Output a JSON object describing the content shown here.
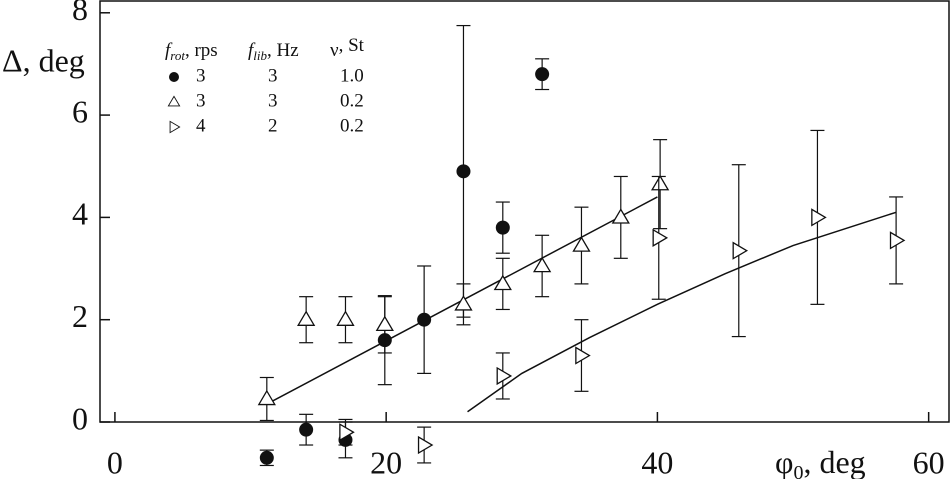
{
  "chart_data": {
    "type": "scatter",
    "x_label": {
      "symbol": "φ",
      "sub": "0",
      "rest": ", deg"
    },
    "y_label": "Δ, deg",
    "xlim": [
      -1.1,
      61.5
    ],
    "ylim": [
      0,
      8.25
    ],
    "xticks": [
      0,
      20,
      40,
      60
    ],
    "yticks": [
      0,
      2,
      4,
      6,
      8
    ],
    "legend_header": [
      {
        "symbol": "f",
        "sub": "rot",
        "rest": ", rps"
      },
      {
        "symbol": "f",
        "sub": "lib",
        "rest": ", Hz"
      },
      {
        "symbol": "ν",
        "sub": "",
        "rest": ", St"
      }
    ],
    "series": [
      {
        "marker": "circle",
        "color": "#111111",
        "legend": [
          "3",
          "3",
          "1.0"
        ],
        "x": [
          11.2,
          14.1,
          17,
          19.9,
          22.8,
          25.7,
          28.6,
          31.5
        ],
        "values": [
          -0.7,
          -0.15,
          -0.35,
          1.6,
          2.0,
          4.9,
          3.8,
          6.8
        ],
        "errors": [
          0.15,
          0.3,
          0.35,
          0.87,
          1.05,
          2.85,
          0.5,
          0.3
        ]
      },
      {
        "marker": "triangle-up",
        "color": "#111111",
        "legend": [
          "3",
          "3",
          "0.2"
        ],
        "x": [
          11.2,
          14.1,
          17,
          19.9,
          25.7,
          28.6,
          31.5,
          34.4,
          37.3,
          40.2
        ],
        "values": [
          0.45,
          2.0,
          2.0,
          1.9,
          2.3,
          2.7,
          3.05,
          3.45,
          4.0,
          4.65
        ],
        "errors": [
          0.42,
          0.45,
          0.45,
          0.55,
          0.4,
          0.5,
          0.6,
          0.75,
          0.8,
          0.87
        ]
      },
      {
        "marker": "triangle-right",
        "color": "#111111",
        "legend": [
          "4",
          "2",
          "0.2"
        ],
        "x": [
          17,
          22.8,
          28.6,
          34.4,
          40.1,
          46,
          51.8,
          57.6
        ],
        "values": [
          -0.2,
          -0.45,
          0.9,
          1.3,
          3.6,
          3.35,
          4.0,
          3.55
        ],
        "errors": [
          0.25,
          0.35,
          0.45,
          0.7,
          1.2,
          1.68,
          1.7,
          0.85
        ]
      }
    ],
    "fits": [
      {
        "x": [
          11.2,
          40
        ],
        "values": [
          0.35,
          4.4
        ]
      },
      {
        "x": [
          26,
          30,
          35,
          40,
          45,
          50,
          57.6
        ],
        "values": [
          0.2,
          0.95,
          1.65,
          2.3,
          2.9,
          3.45,
          4.1
        ]
      }
    ]
  }
}
